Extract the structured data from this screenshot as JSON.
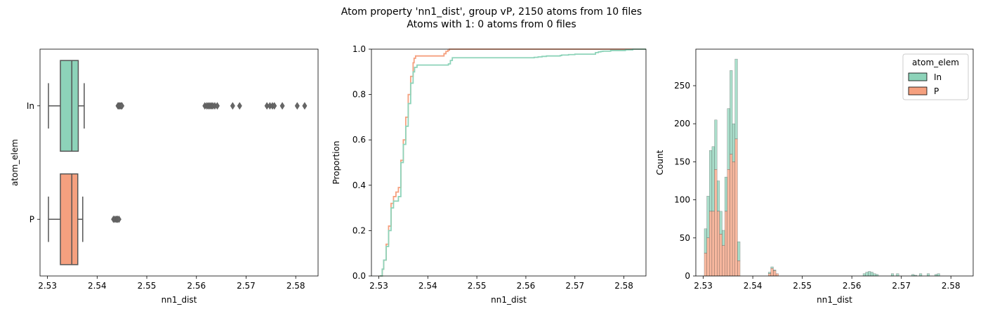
{
  "figure": {
    "title_line1": "Atom property 'nn1_dist', group vP, 2150 atoms from 10 files",
    "title_line2": "Atoms with 1: 0 atoms from 0 files"
  },
  "colors": {
    "In": "#8dd3b9",
    "P": "#f5a07f",
    "median": "#555555",
    "whisker": "#555555"
  },
  "chart_data": [
    {
      "type": "box",
      "xlabel": "nn1_dist",
      "ylabel": "atom_elem",
      "xlim": [
        2.5285,
        2.5845
      ],
      "xticks": [
        2.53,
        2.54,
        2.55,
        2.56,
        2.57,
        2.58
      ],
      "xtick_labels": [
        "2.53",
        "2.54",
        "2.55",
        "2.56",
        "2.57",
        "2.58"
      ],
      "categories": [
        "In",
        "P"
      ],
      "boxes": [
        {
          "name": "In",
          "whisker_low": 2.5302,
          "q1": 2.5326,
          "median": 2.5349,
          "q3": 2.5362,
          "whisker_high": 2.5374,
          "outliers": [
            2.5442,
            2.5444,
            2.5446,
            2.5448,
            2.545,
            2.5617,
            2.5621,
            2.5624,
            2.5627,
            2.563,
            2.5633,
            2.5637,
            2.5642,
            2.5673,
            2.5687,
            2.5742,
            2.5748,
            2.5753,
            2.5757,
            2.5773,
            2.5803,
            2.5818
          ]
        },
        {
          "name": "P",
          "whisker_low": 2.5302,
          "q1": 2.5326,
          "median": 2.5349,
          "q3": 2.5361,
          "whisker_high": 2.5371,
          "outliers": [
            2.5433,
            2.5436,
            2.5439,
            2.5441,
            2.5444
          ]
        }
      ]
    },
    {
      "type": "line",
      "xlabel": "nn1_dist",
      "ylabel": "Proportion",
      "xlim": [
        2.5285,
        2.5845
      ],
      "ylim": [
        0,
        1.0
      ],
      "xticks": [
        2.53,
        2.54,
        2.55,
        2.56,
        2.57,
        2.58
      ],
      "xtick_labels": [
        "2.53",
        "2.54",
        "2.55",
        "2.56",
        "2.57",
        "2.58"
      ],
      "yticks": [
        0.0,
        0.2,
        0.4,
        0.6,
        0.8,
        1.0
      ],
      "ytick_labels": [
        "0.0",
        "0.2",
        "0.4",
        "0.6",
        "0.8",
        "1.0"
      ],
      "series": [
        {
          "name": "P",
          "x": [
            2.5302,
            2.5307,
            2.531,
            2.5315,
            2.532,
            2.5325,
            2.533,
            2.5335,
            2.534,
            2.5345,
            2.535,
            2.5355,
            2.536,
            2.5365,
            2.537,
            2.5372,
            2.5375,
            2.538,
            2.539,
            2.54,
            2.541,
            2.542,
            2.543,
            2.5433,
            2.5437,
            2.5441,
            2.5444,
            2.5845
          ],
          "y": [
            0.0,
            0.03,
            0.07,
            0.14,
            0.22,
            0.32,
            0.35,
            0.37,
            0.39,
            0.51,
            0.6,
            0.7,
            0.8,
            0.88,
            0.94,
            0.96,
            0.97,
            0.97,
            0.97,
            0.97,
            0.97,
            0.97,
            0.97,
            0.98,
            0.99,
            0.995,
            1.0,
            1.0
          ]
        },
        {
          "name": "In",
          "x": [
            2.5302,
            2.5307,
            2.531,
            2.5315,
            2.532,
            2.5325,
            2.533,
            2.5335,
            2.534,
            2.5345,
            2.535,
            2.5355,
            2.536,
            2.5365,
            2.537,
            2.5373,
            2.5378,
            2.539,
            2.541,
            2.543,
            2.5442,
            2.5446,
            2.545,
            2.55,
            2.555,
            2.56,
            2.5617,
            2.5625,
            2.5633,
            2.5642,
            2.565,
            2.567,
            2.5673,
            2.5687,
            2.57,
            2.5742,
            2.5748,
            2.5753,
            2.5757,
            2.5773,
            2.5803,
            2.5818,
            2.5845
          ],
          "y": [
            0.0,
            0.03,
            0.07,
            0.13,
            0.2,
            0.3,
            0.33,
            0.33,
            0.35,
            0.5,
            0.58,
            0.66,
            0.76,
            0.85,
            0.9,
            0.92,
            0.93,
            0.93,
            0.93,
            0.93,
            0.935,
            0.95,
            0.962,
            0.962,
            0.962,
            0.962,
            0.964,
            0.966,
            0.968,
            0.97,
            0.97,
            0.972,
            0.974,
            0.976,
            0.978,
            0.985,
            0.988,
            0.99,
            0.991,
            0.994,
            0.997,
            1.0,
            1.0
          ]
        }
      ]
    },
    {
      "type": "bar",
      "xlabel": "nn1_dist",
      "ylabel": "Count",
      "xlim": [
        2.5285,
        2.5845
      ],
      "ylim": [
        0,
        298
      ],
      "xticks": [
        2.53,
        2.54,
        2.55,
        2.56,
        2.57,
        2.58
      ],
      "xtick_labels": [
        "2.53",
        "2.54",
        "2.55",
        "2.56",
        "2.57",
        "2.58"
      ],
      "yticks": [
        0,
        50,
        100,
        150,
        200,
        250
      ],
      "ytick_labels": [
        "0",
        "50",
        "100",
        "150",
        "200",
        "250"
      ],
      "legend_title": "atom_elem",
      "legend_labels": [
        "In",
        "P"
      ],
      "legend_position": "upper right",
      "bin_start": 2.5302,
      "bin_width": 0.000517,
      "bins_total_In_stacked": [
        62,
        105,
        165,
        170,
        205,
        125,
        85,
        60,
        130,
        220,
        270,
        200,
        285,
        45,
        0,
        0,
        0,
        0,
        0,
        0,
        0,
        0,
        0,
        0,
        0,
        5,
        12,
        8,
        3,
        0,
        0,
        0,
        0,
        0,
        0,
        0,
        0,
        0,
        0,
        0,
        0,
        0,
        0,
        0,
        0,
        0,
        0,
        0,
        0,
        0,
        0,
        0,
        0,
        0,
        0,
        0,
        0,
        0,
        0,
        0,
        0,
        0,
        3,
        5,
        6,
        5,
        3,
        2,
        0,
        0,
        0,
        0,
        0,
        3,
        0,
        3,
        0,
        0,
        0,
        0,
        0,
        2,
        1,
        0,
        3,
        0,
        0,
        3,
        0,
        0,
        2,
        3
      ],
      "bins_P": [
        30,
        50,
        85,
        85,
        140,
        85,
        55,
        40,
        85,
        140,
        160,
        150,
        180,
        20,
        0,
        0,
        0,
        0,
        0,
        0,
        0,
        0,
        0,
        0,
        0,
        3,
        10,
        7,
        3,
        0,
        0,
        0,
        0,
        0,
        0,
        0,
        0,
        0,
        0,
        0,
        0,
        0,
        0,
        0,
        0,
        0,
        0,
        0,
        0,
        0,
        0,
        0,
        0,
        0,
        0,
        0,
        0,
        0,
        0,
        0,
        0,
        0,
        0,
        0,
        0,
        0,
        0,
        0,
        0,
        0,
        0,
        0,
        0,
        0,
        0,
        0,
        0,
        0,
        0,
        0,
        0,
        0,
        0,
        0,
        0,
        0,
        0,
        0,
        0,
        0,
        0,
        0
      ]
    }
  ]
}
